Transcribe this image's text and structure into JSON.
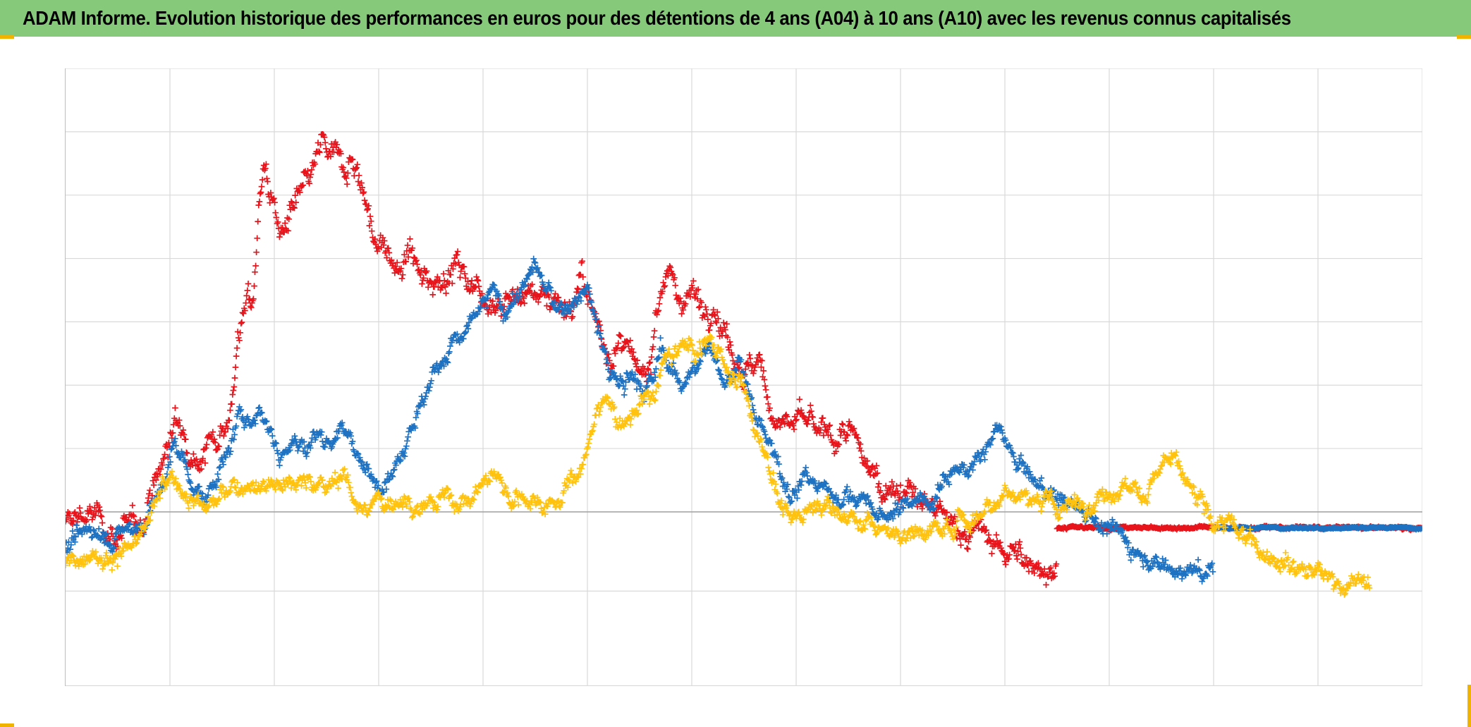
{
  "title": "ADAM Informe. Evolution historique des performances en euros pour des détentions de 4 ans (A04) à 10 ans (A10) avec les revenus connus capitalisés",
  "colors": {
    "title_bg": "#86c97a",
    "accent_corner": "#f0b400",
    "grid": "#d9d9d9",
    "zero_line": "#a6a6a6"
  },
  "chart_data": {
    "type": "scatter",
    "title": "ADAM Informe. Evolution historique des performances en euros pour des détentions de 4 ans (A04) à 10 ans (A10) avec les revenus connus capitalisés",
    "xlabel": "",
    "ylabel": "",
    "marker": "plus",
    "grid": true,
    "x_grid_divisions": 13,
    "xlim": [
      0,
      13
    ],
    "ylim": [
      -1.1,
      2.8
    ],
    "y_gridlines": [
      -0.5,
      0,
      0.4,
      0.8,
      1.2,
      1.6,
      2.0,
      2.4,
      2.8
    ],
    "series": [
      {
        "color": "#e8141c",
        "noise": 0.05,
        "points": [
          [
            0,
            -0.1
          ],
          [
            0.15,
            0
          ],
          [
            0.3,
            -0.05
          ],
          [
            0.5,
            -0.15
          ],
          [
            0.7,
            -0.1
          ],
          [
            0.8,
            0.1
          ],
          [
            0.95,
            0.35
          ],
          [
            1.05,
            0.55
          ],
          [
            1.15,
            0.5
          ],
          [
            1.3,
            0.35
          ],
          [
            1.5,
            0.55
          ],
          [
            1.6,
            0.7
          ],
          [
            1.65,
            1.1
          ],
          [
            1.75,
            1.35
          ],
          [
            1.8,
            1.3
          ],
          [
            1.85,
            1.9
          ],
          [
            1.9,
            2.25
          ],
          [
            1.95,
            2.05
          ],
          [
            2.05,
            1.75
          ],
          [
            2.2,
            1.9
          ],
          [
            2.35,
            2.1
          ],
          [
            2.45,
            2.3
          ],
          [
            2.6,
            2.2
          ],
          [
            2.75,
            2.25
          ],
          [
            2.85,
            2.05
          ],
          [
            2.95,
            1.75
          ],
          [
            3.1,
            1.6
          ],
          [
            3.2,
            1.5
          ],
          [
            3.3,
            1.65
          ],
          [
            3.4,
            1.45
          ],
          [
            3.6,
            1.5
          ],
          [
            3.75,
            1.55
          ],
          [
            3.9,
            1.45
          ],
          [
            4.1,
            1.35
          ],
          [
            4.3,
            1.35
          ],
          [
            4.5,
            1.4
          ],
          [
            4.7,
            1.35
          ],
          [
            4.85,
            1.3
          ],
          [
            4.95,
            1.45
          ],
          [
            5.05,
            1.25
          ],
          [
            5.15,
            1.1
          ],
          [
            5.25,
            1.0
          ],
          [
            5.35,
            1.05
          ],
          [
            5.5,
            0.8
          ],
          [
            5.6,
            0.95
          ],
          [
            5.65,
            1.3
          ],
          [
            5.75,
            1.55
          ],
          [
            5.85,
            1.35
          ],
          [
            6.0,
            1.4
          ],
          [
            6.1,
            1.3
          ],
          [
            6.2,
            1.35
          ],
          [
            6.35,
            1.1
          ],
          [
            6.5,
            0.9
          ],
          [
            6.65,
            0.9
          ],
          [
            6.8,
            0.6
          ],
          [
            6.95,
            0.55
          ],
          [
            7.1,
            0.55
          ],
          [
            7.3,
            0.45
          ],
          [
            7.5,
            0.5
          ],
          [
            7.6,
            0.35
          ],
          [
            7.8,
            0.2
          ],
          [
            8.0,
            0.15
          ],
          [
            8.2,
            0.05
          ],
          [
            8.4,
            -0.05
          ],
          [
            8.6,
            -0.1
          ],
          [
            8.8,
            -0.15
          ],
          [
            9.0,
            -0.25
          ],
          [
            9.2,
            -0.32
          ],
          [
            9.5,
            -0.34
          ]
        ]
      },
      {
        "color": "#e8141c",
        "noise": 0.005,
        "points": [
          [
            9.5,
            -0.1
          ],
          [
            13.0,
            -0.1
          ]
        ]
      },
      {
        "color": "#1f72c2",
        "noise": 0.035,
        "points": [
          [
            0,
            -0.25
          ],
          [
            0.15,
            -0.18
          ],
          [
            0.25,
            -0.08
          ],
          [
            0.35,
            -0.12
          ],
          [
            0.45,
            -0.18
          ],
          [
            0.6,
            -0.12
          ],
          [
            0.75,
            -0.05
          ],
          [
            0.85,
            0.05
          ],
          [
            0.95,
            0.2
          ],
          [
            1.05,
            0.42
          ],
          [
            1.15,
            0.3
          ],
          [
            1.25,
            0.15
          ],
          [
            1.35,
            0.05
          ],
          [
            1.45,
            0.25
          ],
          [
            1.55,
            0.35
          ],
          [
            1.65,
            0.55
          ],
          [
            1.75,
            0.6
          ],
          [
            1.85,
            0.65
          ],
          [
            1.95,
            0.55
          ],
          [
            2.05,
            0.35
          ],
          [
            2.15,
            0.45
          ],
          [
            2.3,
            0.4
          ],
          [
            2.4,
            0.5
          ],
          [
            2.5,
            0.45
          ],
          [
            2.65,
            0.55
          ],
          [
            2.75,
            0.45
          ],
          [
            2.85,
            0.25
          ],
          [
            2.95,
            0.2
          ],
          [
            3.05,
            0.25
          ],
          [
            3.15,
            0.3
          ],
          [
            3.25,
            0.45
          ],
          [
            3.35,
            0.6
          ],
          [
            3.45,
            0.75
          ],
          [
            3.55,
            0.9
          ],
          [
            3.7,
            1.05
          ],
          [
            3.85,
            1.15
          ],
          [
            4.0,
            1.3
          ],
          [
            4.1,
            1.4
          ],
          [
            4.2,
            1.25
          ],
          [
            4.3,
            1.35
          ],
          [
            4.4,
            1.45
          ],
          [
            4.5,
            1.55
          ],
          [
            4.6,
            1.4
          ],
          [
            4.75,
            1.25
          ],
          [
            4.9,
            1.35
          ],
          [
            5.0,
            1.4
          ],
          [
            5.1,
            1.15
          ],
          [
            5.2,
            0.9
          ],
          [
            5.3,
            0.8
          ],
          [
            5.45,
            0.85
          ],
          [
            5.55,
            0.75
          ],
          [
            5.65,
            0.85
          ],
          [
            5.7,
            1.05
          ],
          [
            5.8,
            0.9
          ],
          [
            5.9,
            0.85
          ],
          [
            6.0,
            0.9
          ],
          [
            6.1,
            0.95
          ],
          [
            6.2,
            1.0
          ],
          [
            6.3,
            0.85
          ],
          [
            6.4,
            0.9
          ],
          [
            6.45,
            0.95
          ],
          [
            6.55,
            0.75
          ],
          [
            6.65,
            0.5
          ],
          [
            6.75,
            0.4
          ],
          [
            6.85,
            0.25
          ],
          [
            6.95,
            0.15
          ],
          [
            7.1,
            0.2
          ],
          [
            7.3,
            0.15
          ],
          [
            7.45,
            0.1
          ],
          [
            7.55,
            0.1
          ],
          [
            7.7,
            0.05
          ],
          [
            7.8,
            -0.05
          ],
          [
            7.95,
            0.0
          ],
          [
            8.05,
            0.05
          ],
          [
            8.15,
            0.1
          ],
          [
            8.25,
            0.05
          ],
          [
            8.35,
            0.15
          ],
          [
            8.45,
            0.25
          ],
          [
            8.55,
            0.3
          ],
          [
            8.7,
            0.25
          ],
          [
            8.8,
            0.35
          ],
          [
            8.9,
            0.5
          ],
          [
            9.0,
            0.45
          ],
          [
            9.1,
            0.3
          ],
          [
            9.2,
            0.25
          ],
          [
            9.35,
            0.15
          ],
          [
            9.5,
            0.1
          ],
          [
            9.65,
            0.05
          ],
          [
            9.8,
            0.0
          ],
          [
            10.0,
            -0.1
          ],
          [
            10.2,
            -0.2
          ],
          [
            10.4,
            -0.3
          ],
          [
            10.6,
            -0.35
          ],
          [
            10.8,
            -0.38
          ],
          [
            11.0,
            -0.4
          ]
        ]
      },
      {
        "color": "#1f72c2",
        "noise": 0.003,
        "points": [
          [
            11.0,
            -0.1
          ],
          [
            13.0,
            -0.1
          ]
        ]
      },
      {
        "color": "#ffc20e",
        "noise": 0.035,
        "points": [
          [
            0,
            -0.32
          ],
          [
            0.2,
            -0.25
          ],
          [
            0.4,
            -0.28
          ],
          [
            0.6,
            -0.25
          ],
          [
            0.75,
            -0.15
          ],
          [
            0.85,
            0.05
          ],
          [
            0.95,
            0.15
          ],
          [
            1.05,
            0.2
          ],
          [
            1.15,
            0.12
          ],
          [
            1.3,
            0.05
          ],
          [
            1.45,
            0.05
          ],
          [
            1.6,
            0.15
          ],
          [
            1.75,
            0.2
          ],
          [
            1.9,
            0.18
          ],
          [
            2.05,
            0.2
          ],
          [
            2.2,
            0.18
          ],
          [
            2.35,
            0.2
          ],
          [
            2.5,
            0.15
          ],
          [
            2.65,
            0.25
          ],
          [
            2.75,
            0.1
          ],
          [
            2.9,
            0.02
          ],
          [
            3.05,
            0.05
          ],
          [
            3.2,
            0.1
          ],
          [
            3.35,
            0.05
          ],
          [
            3.5,
            0.05
          ],
          [
            3.65,
            0.1
          ],
          [
            3.8,
            0.05
          ],
          [
            3.95,
            0.15
          ],
          [
            4.05,
            0.2
          ],
          [
            4.15,
            0.25
          ],
          [
            4.25,
            0.1
          ],
          [
            4.4,
            0.1
          ],
          [
            4.55,
            0.05
          ],
          [
            4.7,
            0.1
          ],
          [
            4.85,
            0.2
          ],
          [
            4.95,
            0.3
          ],
          [
            5.05,
            0.5
          ],
          [
            5.15,
            0.75
          ],
          [
            5.25,
            0.65
          ],
          [
            5.35,
            0.55
          ],
          [
            5.45,
            0.65
          ],
          [
            5.55,
            0.7
          ],
          [
            5.65,
            0.75
          ],
          [
            5.75,
            0.95
          ],
          [
            5.85,
            1.0
          ],
          [
            5.95,
            1.05
          ],
          [
            6.05,
            1.0
          ],
          [
            6.15,
            1.1
          ],
          [
            6.25,
            1.05
          ],
          [
            6.35,
            0.85
          ],
          [
            6.45,
            0.85
          ],
          [
            6.55,
            0.65
          ],
          [
            6.65,
            0.45
          ],
          [
            6.75,
            0.3
          ],
          [
            6.85,
            0.05
          ],
          [
            6.95,
            -0.05
          ],
          [
            7.1,
            0.0
          ],
          [
            7.25,
            0.1
          ],
          [
            7.4,
            0.0
          ],
          [
            7.6,
            -0.05
          ],
          [
            7.8,
            -0.1
          ],
          [
            8.0,
            -0.15
          ],
          [
            8.2,
            -0.1
          ],
          [
            8.4,
            -0.12
          ],
          [
            8.55,
            -0.05
          ],
          [
            8.7,
            -0.05
          ],
          [
            8.85,
            0.05
          ],
          [
            9.0,
            0.15
          ],
          [
            9.1,
            0.1
          ],
          [
            9.25,
            0.1
          ],
          [
            9.45,
            0.02
          ],
          [
            9.6,
            0.05
          ],
          [
            9.8,
            0.05
          ],
          [
            9.95,
            0.1
          ],
          [
            10.05,
            0.18
          ],
          [
            10.25,
            0.15
          ],
          [
            10.35,
            0.12
          ],
          [
            10.45,
            0.25
          ],
          [
            10.55,
            0.3
          ],
          [
            10.65,
            0.28
          ],
          [
            10.75,
            0.15
          ],
          [
            10.85,
            0.05
          ],
          [
            11.0,
            -0.05
          ],
          [
            11.15,
            -0.1
          ],
          [
            11.35,
            -0.18
          ],
          [
            11.55,
            -0.25
          ],
          [
            11.75,
            -0.32
          ],
          [
            11.95,
            -0.38
          ],
          [
            12.15,
            -0.42
          ],
          [
            12.35,
            -0.45
          ],
          [
            12.5,
            -0.45
          ]
        ]
      }
    ]
  }
}
